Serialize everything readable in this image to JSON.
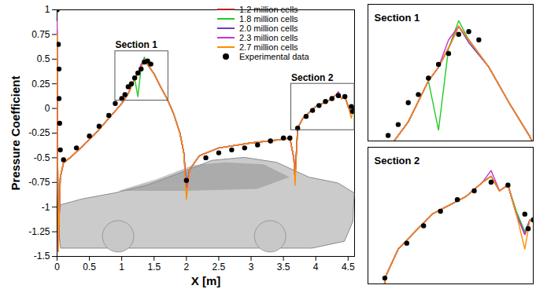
{
  "chart_data": {
    "type": "line",
    "x_label": "X [m]",
    "y_label": "Pressure Coefficient",
    "xlim": [
      0,
      4.6
    ],
    "ylim": [
      -1.5,
      1
    ],
    "xticks": [
      0,
      0.5,
      1,
      1.5,
      2,
      2.5,
      3,
      3.5,
      4,
      4.5
    ],
    "yticks": [
      -1.5,
      -1.25,
      -1,
      -0.75,
      -0.5,
      -0.25,
      0,
      0.25,
      0.5,
      0.75,
      1
    ],
    "grid": false,
    "legend": "top-right",
    "x": [
      0,
      0.005,
      0.01,
      0.02,
      0.05,
      0.1,
      0.2,
      0.4,
      0.6,
      0.8,
      1.0,
      1.1,
      1.2,
      1.25,
      1.3,
      1.35,
      1.4,
      1.5,
      1.6,
      1.7,
      1.8,
      1.9,
      1.96,
      2.0,
      2.05,
      2.2,
      2.5,
      3.0,
      3.4,
      3.6,
      3.66,
      3.68,
      3.72,
      3.8,
      4.0,
      4.2,
      4.3,
      4.35,
      4.4,
      4.45,
      4.5,
      4.55,
      4.58
    ],
    "series": [
      {
        "name": "1.2 million cells",
        "type": "line",
        "color": "#b22222",
        "values": [
          0.7,
          0.2,
          -0.6,
          -1.35,
          -0.7,
          -0.55,
          -0.5,
          -0.38,
          -0.25,
          -0.1,
          0.05,
          0.15,
          0.3,
          0.35,
          0.42,
          0.5,
          0.45,
          0.35,
          0.22,
          0.1,
          -0.05,
          -0.25,
          -0.45,
          -0.8,
          -0.62,
          -0.48,
          -0.4,
          -0.35,
          -0.32,
          -0.3,
          -0.5,
          -0.7,
          -0.2,
          -0.1,
          0.02,
          0.08,
          0.13,
          0.15,
          0.1,
          0.12,
          0.02,
          -0.05,
          0.0
        ]
      },
      {
        "name": "1.8 million cells",
        "type": "line",
        "color": "#22cc22",
        "values": [
          0.8,
          0.2,
          -0.6,
          -1.2,
          -0.7,
          -0.55,
          -0.5,
          -0.38,
          -0.25,
          -0.1,
          0.05,
          0.15,
          0.3,
          0.12,
          0.42,
          0.52,
          0.45,
          0.35,
          0.22,
          0.1,
          -0.05,
          -0.25,
          -0.45,
          -0.8,
          -0.62,
          -0.48,
          -0.4,
          -0.35,
          -0.32,
          -0.3,
          -0.5,
          -0.7,
          -0.2,
          -0.1,
          0.02,
          0.08,
          0.13,
          0.15,
          0.1,
          0.12,
          0.03,
          -0.04,
          0.0
        ]
      },
      {
        "name": "2.0 million cells",
        "type": "line",
        "color": "#6a3fbf",
        "values": [
          0.8,
          0.2,
          -0.6,
          -1.4,
          -0.7,
          -0.55,
          -0.5,
          -0.38,
          -0.25,
          -0.1,
          0.05,
          0.15,
          0.3,
          0.35,
          0.42,
          0.5,
          0.44,
          0.35,
          0.22,
          0.1,
          -0.05,
          -0.25,
          -0.45,
          -0.8,
          -0.62,
          -0.48,
          -0.4,
          -0.35,
          -0.32,
          -0.3,
          -0.5,
          -0.7,
          -0.2,
          -0.1,
          0.02,
          0.08,
          0.13,
          0.15,
          0.1,
          0.12,
          0.02,
          -0.05,
          0.0
        ]
      },
      {
        "name": "2.3 million cells",
        "type": "line",
        "color": "#cc33cc",
        "values": [
          0.88,
          0.2,
          -0.6,
          -1.45,
          -0.7,
          -0.55,
          -0.5,
          -0.38,
          -0.25,
          -0.1,
          0.05,
          0.15,
          0.3,
          0.35,
          0.45,
          0.5,
          0.45,
          0.35,
          0.22,
          0.1,
          -0.05,
          -0.25,
          -0.45,
          -0.8,
          -0.62,
          -0.48,
          -0.4,
          -0.35,
          -0.32,
          -0.3,
          -0.5,
          -0.7,
          -0.2,
          -0.1,
          0.02,
          0.08,
          0.13,
          0.17,
          0.1,
          0.12,
          0.02,
          -0.05,
          0.0
        ]
      },
      {
        "name": "2.7 million cells",
        "type": "line",
        "color": "#ff8c00",
        "values": [
          0.75,
          0.2,
          -0.6,
          -1.45,
          -0.7,
          -0.55,
          -0.5,
          -0.38,
          -0.25,
          -0.1,
          0.05,
          0.15,
          0.3,
          0.35,
          0.42,
          0.5,
          0.45,
          0.35,
          0.22,
          0.1,
          -0.05,
          -0.25,
          -0.45,
          -0.92,
          -0.62,
          -0.48,
          -0.4,
          -0.35,
          -0.32,
          -0.3,
          -0.5,
          -0.78,
          -0.2,
          -0.1,
          0.02,
          0.08,
          0.13,
          0.15,
          0.1,
          0.12,
          0.02,
          -0.1,
          0.0
        ]
      },
      {
        "name": "Experimental data",
        "type": "scatter",
        "color": "#000000",
        "marker": "circle",
        "x": [
          0.0,
          0.02,
          0.03,
          0.03,
          0.04,
          0.05,
          0.1,
          0.3,
          0.5,
          0.65,
          0.8,
          0.9,
          1.0,
          1.05,
          1.1,
          1.15,
          1.2,
          1.25,
          1.3,
          1.35,
          1.4,
          1.45,
          2.0,
          2.3,
          2.5,
          2.7,
          2.9,
          3.1,
          3.3,
          3.5,
          3.6,
          3.72,
          3.85,
          3.95,
          4.05,
          4.15,
          4.25,
          4.35,
          4.45,
          4.55,
          4.57,
          4.6
        ],
        "values": [
          1.0,
          0.65,
          0.4,
          0.1,
          -0.15,
          -0.42,
          -0.52,
          -0.4,
          -0.28,
          -0.18,
          -0.07,
          0.05,
          0.1,
          0.14,
          0.22,
          0.25,
          0.31,
          0.36,
          0.4,
          0.47,
          0.48,
          0.45,
          -0.73,
          -0.5,
          -0.45,
          -0.42,
          -0.4,
          -0.37,
          -0.33,
          -0.3,
          -0.3,
          -0.2,
          -0.08,
          -0.02,
          0.03,
          0.07,
          0.1,
          0.13,
          0.12,
          0.02,
          -0.03,
          0.0
        ]
      }
    ],
    "insets": [
      {
        "title": "Section 1",
        "xlim": [
          0.9,
          1.72
        ],
        "ylim": [
          0.08,
          0.58
        ],
        "tick_labels": false
      },
      {
        "title": "Section 2",
        "xlim": [
          3.62,
          4.6
        ],
        "ylim": [
          -0.22,
          0.25
        ],
        "tick_labels": false
      }
    ]
  }
}
